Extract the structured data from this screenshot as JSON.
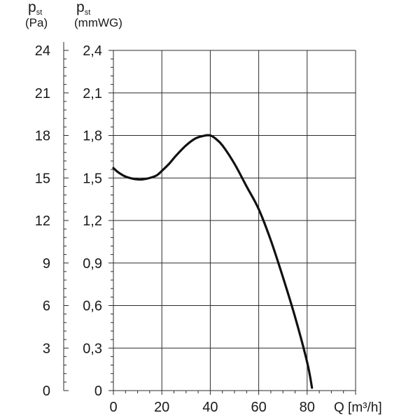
{
  "chart_data": {
    "type": "line",
    "title": "",
    "axis_left_pa": {
      "label_main": "p",
      "label_sub": "st",
      "unit": "(Pa)",
      "ticks": [
        "24",
        "21",
        "18",
        "15",
        "12",
        "9",
        "6",
        "3",
        "0"
      ],
      "ylim": [
        0,
        24
      ]
    },
    "axis_left_mmwg": {
      "label_main": "p",
      "label_sub": "st",
      "unit": "(mmWG)",
      "ticks": [
        "2,4",
        "2,1",
        "1,8",
        "1,5",
        "1,2",
        "0,9",
        "0,6",
        "0,3",
        "0"
      ],
      "ylim": [
        0,
        2.4
      ]
    },
    "x_axis": {
      "label": "Q [m³/h]",
      "ticks": [
        "0",
        "20",
        "40",
        "60",
        "80"
      ],
      "xlim": [
        0,
        100
      ]
    },
    "grid": true,
    "series": [
      {
        "x": [
          0,
          2,
          5,
          8,
          10,
          12,
          15,
          18,
          20,
          23,
          26,
          30,
          34,
          38,
          40,
          42,
          45,
          50,
          55,
          60,
          65,
          70,
          75,
          80,
          82
        ],
        "y": [
          1.57,
          1.54,
          1.51,
          1.495,
          1.49,
          1.49,
          1.5,
          1.52,
          1.55,
          1.6,
          1.66,
          1.73,
          1.78,
          1.8,
          1.8,
          1.78,
          1.73,
          1.6,
          1.44,
          1.28,
          1.06,
          0.8,
          0.52,
          0.2,
          0.02
        ]
      }
    ]
  }
}
